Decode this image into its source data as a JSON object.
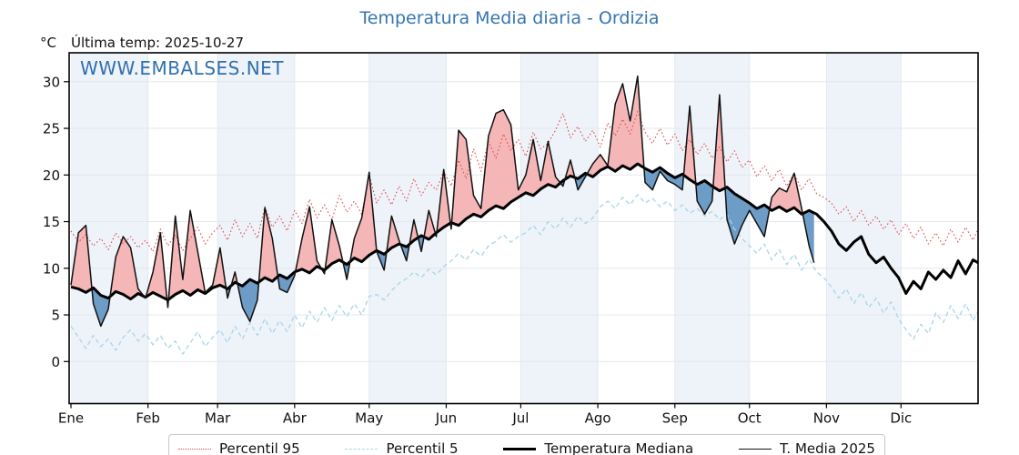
{
  "header": {
    "title": "Temperatura Media diaria - Ordizia",
    "unit": "°C",
    "last_temp": "Última temp: 2025-10-27",
    "watermark": "WWW.EMBALSES.NET"
  },
  "colors": {
    "title": "#3575b2",
    "watermark": "#3070ad",
    "p95": "#e04a4a",
    "p5": "#a9d4e8",
    "median": "#000000",
    "t2025": "#101010",
    "fill_above": "#f5b6b8",
    "fill_below": "#6d9cc6",
    "band": "#eef3f9",
    "grid": "#e2e8ee",
    "axis": "#000000",
    "tick_text": "#111111"
  },
  "legend": {
    "items": [
      {
        "label": "Percentil 95",
        "style": "dotted",
        "color_key": "p95",
        "weight": 1.6
      },
      {
        "label": "Percentil 5",
        "style": "dashed",
        "color_key": "p5",
        "weight": 1.6
      },
      {
        "label": "Temperatura Mediana",
        "style": "solid",
        "color_key": "median",
        "weight": 3.5
      },
      {
        "label": "T. Media 2025",
        "style": "solid",
        "color_key": "t2025",
        "weight": 1.5
      }
    ]
  },
  "chart_data": {
    "type": "line",
    "title": "Temperatura Media diaria - Ordizia",
    "ylabel": "°C",
    "x_tick_labels": [
      "Ene",
      "Feb",
      "Mar",
      "Abr",
      "May",
      "Jun",
      "Jul",
      "Ago",
      "Sep",
      "Oct",
      "Nov",
      "Dic"
    ],
    "month_start_days": [
      0,
      31,
      59,
      90,
      120,
      151,
      181,
      212,
      243,
      273,
      304,
      334,
      365
    ],
    "shaded_month_indices": [
      0,
      2,
      4,
      6,
      8,
      10
    ],
    "y_ticks": [
      0,
      5,
      10,
      15,
      20,
      25,
      30
    ],
    "ylim": [
      -4.5,
      33.1
    ],
    "xlim_days": [
      0,
      365
    ],
    "day_step": 3,
    "legend_position": "bottom-center",
    "grid": true,
    "fill_between": {
      "upper": "T. Media 2025",
      "lower": "Temperatura Mediana",
      "above_color_key": "fill_above",
      "below_color_key": "fill_below"
    },
    "series": [
      {
        "name": "Percentil 95",
        "style": "dotted",
        "color_key": "p95",
        "width": 1.1,
        "end_day": 365,
        "values": [
          14.0,
          12.8,
          13.6,
          12.4,
          13.2,
          12.0,
          13.8,
          12.6,
          13.4,
          12.2,
          13.0,
          11.8,
          14.2,
          12.4,
          13.6,
          11.9,
          13.2,
          14.4,
          12.6,
          13.8,
          14.6,
          13.0,
          15.2,
          13.4,
          14.8,
          13.2,
          16.6,
          14.4,
          15.6,
          14.0,
          16.2,
          14.8,
          17.4,
          15.4,
          16.8,
          15.2,
          17.8,
          16.0,
          17.2,
          15.8,
          20.0,
          17.0,
          18.4,
          16.8,
          18.8,
          17.2,
          19.6,
          17.8,
          19.2,
          18.4,
          20.4,
          18.8,
          21.6,
          19.6,
          22.8,
          20.4,
          23.6,
          21.8,
          24.4,
          22.6,
          23.8,
          22.0,
          24.6,
          22.8,
          23.4,
          24.8,
          26.6,
          24.0,
          25.2,
          23.6,
          24.8,
          23.0,
          25.6,
          24.2,
          26.0,
          24.4,
          26.8,
          24.6,
          23.4,
          25.0,
          23.2,
          24.4,
          22.6,
          23.8,
          22.2,
          23.4,
          21.8,
          23.0,
          21.4,
          22.6,
          20.8,
          21.6,
          19.8,
          21.0,
          19.4,
          20.6,
          18.8,
          20.2,
          18.4,
          19.6,
          18.0,
          17.6,
          17.0,
          15.8,
          16.6,
          15.0,
          16.2,
          14.6,
          15.6,
          14.2,
          15.2,
          13.6,
          14.8,
          13.2,
          14.4,
          12.6,
          13.8,
          12.4,
          14.2,
          12.8,
          14.4,
          13.0,
          14.2
        ]
      },
      {
        "name": "Percentil 5",
        "style": "dashed",
        "color_key": "p5",
        "width": 1.3,
        "end_day": 365,
        "values": [
          3.8,
          2.6,
          1.4,
          2.8,
          1.6,
          2.4,
          1.2,
          2.6,
          3.4,
          2.2,
          3.0,
          1.8,
          2.8,
          1.4,
          2.2,
          0.8,
          2.0,
          3.2,
          1.6,
          2.6,
          3.4,
          2.0,
          3.8,
          2.4,
          4.2,
          2.8,
          4.6,
          3.0,
          4.4,
          3.2,
          5.0,
          3.6,
          5.4,
          4.2,
          5.8,
          4.4,
          6.0,
          4.8,
          6.2,
          5.0,
          7.0,
          7.2,
          6.6,
          7.6,
          8.4,
          8.9,
          9.6,
          9.0,
          9.9,
          9.3,
          10.2,
          10.8,
          11.6,
          10.9,
          12.0,
          11.3,
          12.4,
          12.9,
          13.6,
          12.8,
          13.4,
          13.8,
          14.6,
          13.6,
          15.0,
          14.2,
          15.4,
          14.4,
          15.6,
          14.8,
          15.4,
          16.6,
          17.2,
          16.4,
          17.6,
          16.8,
          17.9,
          17.0,
          17.5,
          16.6,
          17.2,
          16.2,
          16.8,
          15.9,
          16.4,
          15.6,
          16.1,
          15.2,
          15.8,
          14.2,
          13.2,
          12.4,
          11.6,
          12.6,
          10.9,
          12.0,
          10.4,
          11.5,
          9.8,
          11.0,
          9.6,
          9.0,
          8.0,
          6.8,
          7.8,
          6.2,
          7.4,
          5.8,
          6.8,
          5.2,
          6.4,
          4.6,
          3.4,
          2.4,
          4.0,
          3.0,
          5.2,
          4.2,
          6.0,
          4.6,
          6.2,
          4.4,
          5.4
        ]
      },
      {
        "name": "Temperatura Mediana",
        "style": "solid",
        "color_key": "median",
        "width": 3,
        "end_day": 365,
        "values": [
          8.0,
          7.8,
          7.4,
          7.9,
          7.1,
          6.8,
          7.5,
          7.2,
          6.7,
          7.3,
          6.9,
          7.4,
          7.0,
          6.6,
          7.2,
          7.6,
          7.1,
          7.7,
          7.3,
          7.9,
          8.2,
          7.8,
          8.5,
          8.1,
          8.8,
          8.4,
          9.0,
          8.6,
          9.3,
          8.9,
          9.6,
          9.9,
          9.5,
          10.2,
          9.8,
          10.5,
          10.9,
          10.4,
          11.1,
          10.7,
          11.4,
          11.9,
          11.5,
          12.2,
          12.6,
          12.3,
          13.0,
          13.5,
          13.1,
          13.8,
          14.4,
          14.9,
          14.6,
          15.3,
          15.8,
          15.5,
          16.2,
          16.7,
          16.4,
          17.1,
          17.6,
          18.1,
          17.8,
          18.5,
          19.0,
          18.7,
          19.4,
          19.9,
          19.6,
          20.2,
          19.8,
          20.5,
          20.9,
          20.4,
          21.0,
          20.6,
          21.2,
          20.7,
          20.3,
          20.8,
          20.2,
          19.7,
          20.1,
          19.5,
          19.0,
          19.4,
          18.8,
          18.3,
          18.7,
          18.0,
          17.5,
          17.0,
          16.4,
          16.8,
          16.2,
          16.6,
          16.1,
          16.5,
          15.8,
          16.2,
          15.8,
          15.0,
          14.0,
          12.6,
          11.9,
          12.8,
          13.4,
          11.5,
          10.6,
          11.2,
          10.0,
          9.0,
          7.3,
          8.6,
          7.8,
          9.6,
          8.8,
          9.8,
          9.0,
          10.8,
          9.4,
          10.9,
          10.6
        ]
      },
      {
        "name": "T. Media 2025",
        "style": "solid",
        "color_key": "t2025",
        "width": 1.5,
        "end_day": 299,
        "values": [
          8.2,
          13.8,
          14.6,
          6.2,
          3.8,
          5.6,
          11.2,
          13.4,
          12.2,
          7.8,
          6.8,
          9.6,
          13.8,
          5.8,
          15.6,
          8.8,
          16.2,
          11.8,
          7.4,
          8.2,
          12.2,
          6.8,
          9.6,
          5.8,
          4.3,
          6.6,
          16.5,
          13.2,
          7.8,
          7.4,
          9.2,
          13.2,
          16.6,
          10.8,
          9.4,
          15.2,
          12.4,
          8.8,
          13.2,
          15.4,
          20.3,
          11.8,
          9.8,
          15.6,
          13.0,
          10.8,
          15.2,
          11.8,
          16.2,
          13.4,
          20.6,
          14.2,
          24.8,
          23.8,
          17.8,
          16.4,
          24.2,
          26.6,
          27.0,
          25.4,
          18.4,
          20.0,
          23.8,
          19.4,
          23.6,
          19.8,
          18.8,
          21.6,
          18.4,
          19.8,
          21.2,
          22.2,
          21.0,
          27.6,
          29.8,
          25.8,
          30.6,
          19.2,
          18.4,
          20.4,
          19.4,
          19.0,
          18.4,
          27.4,
          17.2,
          15.8,
          17.2,
          28.6,
          15.2,
          12.6,
          14.6,
          16.2,
          14.8,
          13.4,
          17.6,
          18.6,
          18.2,
          20.2,
          16.4,
          12.4,
          10.6
        ]
      }
    ]
  }
}
